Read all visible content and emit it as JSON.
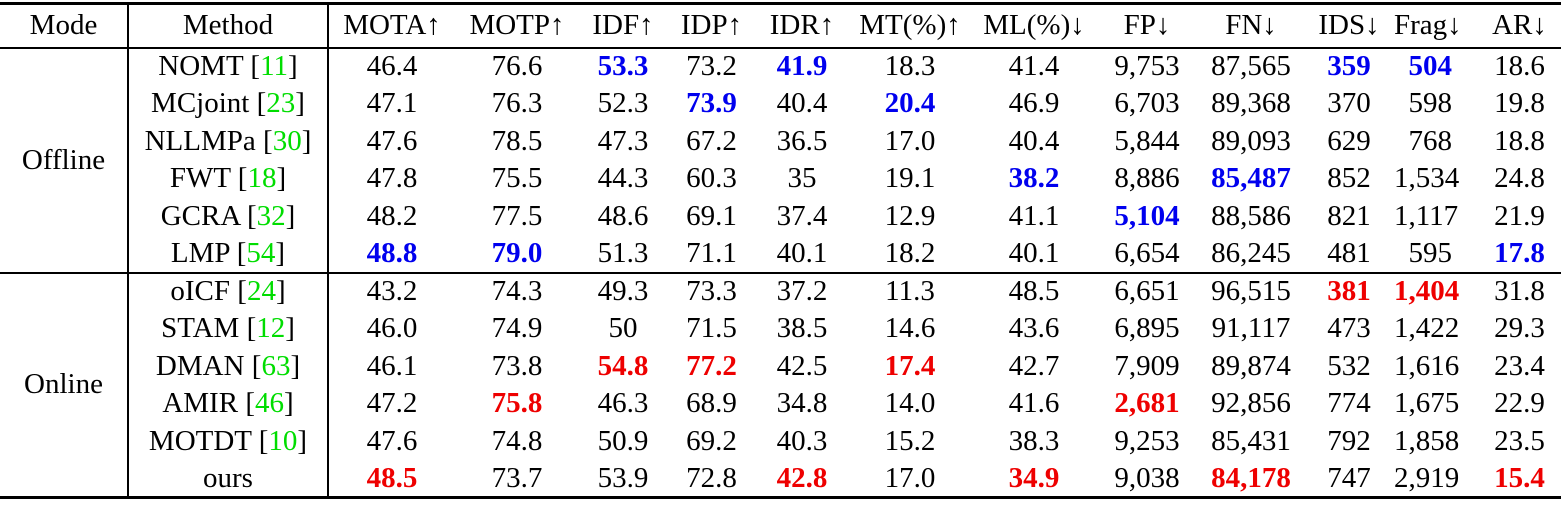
{
  "table": {
    "cite_left": "[",
    "cite_right": "]",
    "colors": {
      "best_offline": "#0000ee",
      "best_online": "#ee0000",
      "citation_green": "#00dd00",
      "text": "#000000",
      "rule": "#000000"
    },
    "columns": [
      {
        "label": "Mode",
        "align": "center"
      },
      {
        "label": "Method",
        "align": "center"
      },
      {
        "label": "MOTA↑",
        "align": "center"
      },
      {
        "label": "MOTP↑",
        "align": "center"
      },
      {
        "label": "IDF↑",
        "align": "center"
      },
      {
        "label": "IDP↑",
        "align": "center"
      },
      {
        "label": "IDR↑",
        "align": "center"
      },
      {
        "label": "MT(%)↑",
        "align": "center"
      },
      {
        "label": "ML(%)↓",
        "align": "center"
      },
      {
        "label": "FP↓",
        "align": "center"
      },
      {
        "label": "FN↓",
        "align": "center"
      },
      {
        "label": "IDS↓",
        "align": "center"
      },
      {
        "label": "Frag↓",
        "align": "right"
      },
      {
        "label": "AR↓",
        "align": "center"
      }
    ],
    "sections": [
      {
        "mode": "Offline",
        "rows": [
          {
            "method": "NOMT",
            "cite": "11",
            "values": [
              "46.4",
              "76.6",
              {
                "t": "53.3",
                "c": "blue"
              },
              "73.2",
              {
                "t": "41.9",
                "c": "blue"
              },
              "18.3",
              "41.4",
              "9,753",
              "87,565",
              {
                "t": "359",
                "c": "blue"
              },
              {
                "t": "504",
                "c": "blue"
              },
              "18.6"
            ]
          },
          {
            "method": "MCjoint",
            "cite": "23",
            "values": [
              "47.1",
              "76.3",
              "52.3",
              {
                "t": "73.9",
                "c": "blue"
              },
              "40.4",
              {
                "t": "20.4",
                "c": "blue"
              },
              "46.9",
              "6,703",
              "89,368",
              "370",
              "598",
              "19.8"
            ]
          },
          {
            "method": "NLLMPa",
            "cite": "30",
            "values": [
              "47.6",
              "78.5",
              "47.3",
              "67.2",
              "36.5",
              "17.0",
              "40.4",
              "5,844",
              "89,093",
              "629",
              "768",
              "18.8"
            ]
          },
          {
            "method": "FWT",
            "cite": "18",
            "values": [
              "47.8",
              "75.5",
              "44.3",
              "60.3",
              "35",
              "19.1",
              {
                "t": "38.2",
                "c": "blue"
              },
              "8,886",
              {
                "t": "85,487",
                "c": "blue"
              },
              "852",
              "1,534",
              "24.8"
            ]
          },
          {
            "method": "GCRA",
            "cite": "32",
            "values": [
              "48.2",
              "77.5",
              "48.6",
              "69.1",
              "37.4",
              "12.9",
              "41.1",
              {
                "t": "5,104",
                "c": "blue"
              },
              "88,586",
              "821",
              "1,117",
              "21.9"
            ]
          },
          {
            "method": "LMP",
            "cite": "54",
            "values": [
              {
                "t": "48.8",
                "c": "blue"
              },
              {
                "t": "79.0",
                "c": "blue"
              },
              "51.3",
              "71.1",
              "40.1",
              "18.2",
              "40.1",
              "6,654",
              "86,245",
              "481",
              "595",
              {
                "t": "17.8",
                "c": "blue"
              }
            ]
          }
        ]
      },
      {
        "mode": "Online",
        "rows": [
          {
            "method": "oICF",
            "cite": "24",
            "values": [
              "43.2",
              "74.3",
              "49.3",
              "73.3",
              "37.2",
              "11.3",
              "48.5",
              "6,651",
              "96,515",
              {
                "t": "381",
                "c": "red"
              },
              {
                "t": "1,404",
                "c": "red"
              },
              "31.8"
            ]
          },
          {
            "method": "STAM",
            "cite": "12",
            "values": [
              "46.0",
              "74.9",
              "50",
              "71.5",
              "38.5",
              "14.6",
              "43.6",
              "6,895",
              "91,117",
              "473",
              "1,422",
              "29.3"
            ]
          },
          {
            "method": "DMAN",
            "cite": "63",
            "values": [
              "46.1",
              "73.8",
              {
                "t": "54.8",
                "c": "red"
              },
              {
                "t": "77.2",
                "c": "red"
              },
              "42.5",
              {
                "t": "17.4",
                "c": "red"
              },
              "42.7",
              "7,909",
              "89,874",
              "532",
              "1,616",
              "23.4"
            ]
          },
          {
            "method": "AMIR",
            "cite": "46",
            "values": [
              "47.2",
              {
                "t": "75.8",
                "c": "red"
              },
              "46.3",
              "68.9",
              "34.8",
              "14.0",
              "41.6",
              {
                "t": "2,681",
                "c": "red"
              },
              "92,856",
              "774",
              "1,675",
              "22.9"
            ]
          },
          {
            "method": "MOTDT",
            "cite": "10",
            "values": [
              "47.6",
              "74.8",
              "50.9",
              "69.2",
              "40.3",
              "15.2",
              "38.3",
              "9,253",
              "85,431",
              "792",
              "1,858",
              "23.5"
            ]
          },
          {
            "method": "ours",
            "cite": null,
            "values": [
              {
                "t": "48.5",
                "c": "red"
              },
              "73.7",
              "53.9",
              "72.8",
              {
                "t": "42.8",
                "c": "red"
              },
              "17.0",
              {
                "t": "34.9",
                "c": "red"
              },
              "9,038",
              {
                "t": "84,178",
                "c": "red"
              },
              "747",
              "2,919",
              {
                "t": "15.4",
                "c": "red"
              }
            ]
          }
        ]
      }
    ]
  }
}
